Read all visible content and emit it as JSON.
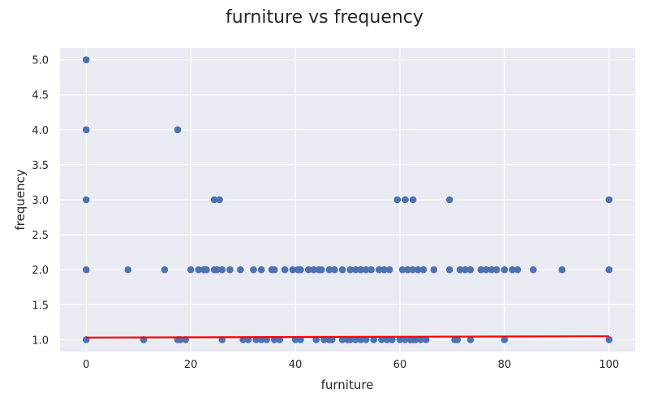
{
  "chart_data": {
    "type": "scatter",
    "title": "furniture vs frequency",
    "xlabel": "furniture",
    "ylabel": "frequency",
    "xlim": [
      -5,
      105
    ],
    "ylim": [
      0.83,
      5.17
    ],
    "xticks": [
      0,
      20,
      40,
      60,
      80,
      100
    ],
    "xtick_labels": [
      "0",
      "20",
      "40",
      "60",
      "80",
      "100"
    ],
    "yticks": [
      1.0,
      1.5,
      2.0,
      2.5,
      3.0,
      3.5,
      4.0,
      4.5,
      5.0
    ],
    "ytick_labels": [
      "1.0",
      "1.5",
      "2.0",
      "2.5",
      "3.0",
      "3.5",
      "4.0",
      "4.5",
      "5.0"
    ],
    "grid": true,
    "colors": {
      "points": "#4c72b0",
      "trend": "#ff0000",
      "background": "#eaeaf2",
      "grid": "#ffffff"
    },
    "series": [
      {
        "kind": "scatter",
        "points": [
          [
            0,
            5
          ],
          [
            0,
            4
          ],
          [
            0,
            3
          ],
          [
            0,
            2
          ],
          [
            0,
            1
          ],
          [
            17.5,
            4
          ],
          [
            24.5,
            3
          ],
          [
            25.5,
            3
          ],
          [
            59.5,
            3
          ],
          [
            61,
            3
          ],
          [
            62.5,
            3
          ],
          [
            69.5,
            3
          ],
          [
            100,
            3
          ],
          [
            8,
            2
          ],
          [
            15,
            2
          ],
          [
            20,
            2
          ],
          [
            21.5,
            2
          ],
          [
            22.5,
            2
          ],
          [
            23,
            2
          ],
          [
            24.5,
            2
          ],
          [
            25,
            2
          ],
          [
            26,
            2
          ],
          [
            27.5,
            2
          ],
          [
            29.5,
            2
          ],
          [
            32,
            2
          ],
          [
            33.5,
            2
          ],
          [
            35.5,
            2
          ],
          [
            36,
            2
          ],
          [
            38,
            2
          ],
          [
            39.5,
            2
          ],
          [
            40.5,
            2
          ],
          [
            41,
            2
          ],
          [
            42.5,
            2
          ],
          [
            43.5,
            2
          ],
          [
            44.5,
            2
          ],
          [
            45,
            2
          ],
          [
            46.5,
            2
          ],
          [
            47.5,
            2
          ],
          [
            49,
            2
          ],
          [
            50.5,
            2
          ],
          [
            51.5,
            2
          ],
          [
            52.5,
            2
          ],
          [
            53.5,
            2
          ],
          [
            54.5,
            2
          ],
          [
            56,
            2
          ],
          [
            57,
            2
          ],
          [
            58,
            2
          ],
          [
            60.5,
            2
          ],
          [
            61.5,
            2
          ],
          [
            62.5,
            2
          ],
          [
            63.5,
            2
          ],
          [
            64.5,
            2
          ],
          [
            66.5,
            2
          ],
          [
            69.5,
            2
          ],
          [
            71.5,
            2
          ],
          [
            72.5,
            2
          ],
          [
            73.5,
            2
          ],
          [
            75.5,
            2
          ],
          [
            76.5,
            2
          ],
          [
            77.5,
            2
          ],
          [
            78.5,
            2
          ],
          [
            80,
            2
          ],
          [
            81.5,
            2
          ],
          [
            82.5,
            2
          ],
          [
            85.5,
            2
          ],
          [
            91,
            2
          ],
          [
            100,
            2
          ],
          [
            11,
            1
          ],
          [
            17.5,
            1
          ],
          [
            18,
            1
          ],
          [
            19,
            1
          ],
          [
            26,
            1
          ],
          [
            30,
            1
          ],
          [
            31,
            1
          ],
          [
            32.5,
            1
          ],
          [
            33.5,
            1
          ],
          [
            34.5,
            1
          ],
          [
            36,
            1
          ],
          [
            37,
            1
          ],
          [
            40,
            1
          ],
          [
            41,
            1
          ],
          [
            44,
            1
          ],
          [
            45.5,
            1
          ],
          [
            46.5,
            1
          ],
          [
            47,
            1
          ],
          [
            49,
            1
          ],
          [
            50,
            1
          ],
          [
            50.5,
            1
          ],
          [
            51.5,
            1
          ],
          [
            52.5,
            1
          ],
          [
            53.5,
            1
          ],
          [
            55,
            1
          ],
          [
            56.5,
            1
          ],
          [
            57.5,
            1
          ],
          [
            58.5,
            1
          ],
          [
            60,
            1
          ],
          [
            61,
            1
          ],
          [
            62,
            1
          ],
          [
            62.5,
            1
          ],
          [
            63,
            1
          ],
          [
            64,
            1
          ],
          [
            65,
            1
          ],
          [
            70.5,
            1
          ],
          [
            71,
            1
          ],
          [
            73.5,
            1
          ],
          [
            80,
            1
          ],
          [
            100,
            1
          ]
        ]
      },
      {
        "kind": "line",
        "points": [
          [
            0,
            1.03
          ],
          [
            100,
            1.05
          ]
        ]
      }
    ]
  }
}
